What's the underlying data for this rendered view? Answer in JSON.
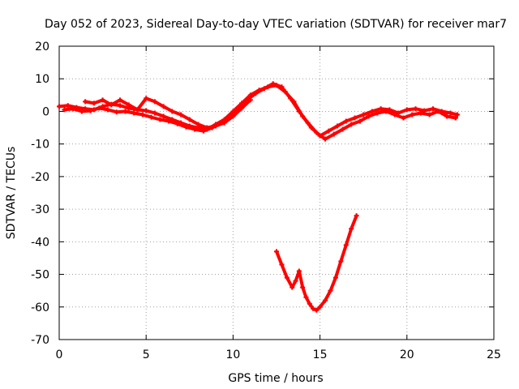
{
  "chart_data": {
    "type": "scatter",
    "title": "Day 052 of 2023, Sidereal Day-to-day VTEC variation (SDTVAR) for receiver mar7",
    "xlabel": "GPS time / hours",
    "ylabel": "SDTVAR / TECUs",
    "xlim": [
      0,
      25
    ],
    "ylim": [
      -70,
      20
    ],
    "grid": true,
    "xticks": [
      0,
      5,
      10,
      15,
      20,
      25
    ],
    "yticks": [
      20,
      10,
      0,
      -10,
      -20,
      -30,
      -40,
      -50,
      -60,
      -70
    ],
    "color": "#ff0000",
    "series": [
      {
        "name": "track-1",
        "x": [
          0.0,
          0.5,
          1.0,
          1.5,
          2.0,
          2.5,
          3.0,
          3.5,
          4.0,
          4.5,
          5.0,
          5.5,
          6.0,
          6.5,
          7.0,
          7.5,
          8.0,
          8.5,
          9.0,
          9.5,
          10.0,
          10.5,
          11.0,
          11.5,
          12.0,
          12.5,
          13.0,
          13.5,
          14.0,
          14.5,
          15.0,
          15.5,
          16.0,
          16.5,
          17.0,
          17.5,
          18.0,
          18.5,
          19.0,
          19.5,
          20.0,
          20.5,
          21.0,
          21.5,
          22.0,
          22.5,
          22.9
        ],
        "y": [
          1.5,
          1.8,
          1.2,
          0.8,
          0.5,
          1.5,
          2.2,
          1.8,
          1.0,
          0.5,
          0.2,
          -0.5,
          -1.5,
          -2.5,
          -3.5,
          -4.5,
          -5.0,
          -5.5,
          -4.0,
          -2.5,
          0.0,
          2.5,
          5.0,
          6.5,
          7.5,
          8.0,
          6.0,
          3.0,
          -1.5,
          -5.0,
          -7.5,
          -6.0,
          -4.5,
          -3.0,
          -2.0,
          -1.0,
          0.0,
          0.8,
          0.5,
          -0.5,
          0.5,
          0.8,
          0.2,
          0.8,
          0.0,
          -0.5,
          -1.0
        ]
      },
      {
        "name": "track-2",
        "x": [
          0.3,
          0.8,
          1.3,
          1.8,
          2.3,
          2.8,
          3.3,
          3.8,
          4.3,
          4.8,
          5.3,
          5.8,
          6.3,
          6.8,
          7.3,
          7.8,
          8.3,
          8.8,
          9.3,
          9.8,
          10.3,
          10.8,
          11.3,
          11.8,
          12.3,
          12.8,
          13.3,
          13.8,
          14.3,
          14.8,
          15.3,
          15.8,
          16.3,
          16.8,
          17.3,
          17.8,
          18.3,
          18.8,
          19.3,
          19.8,
          20.3,
          20.8,
          21.3,
          21.8,
          22.3,
          22.8
        ],
        "y": [
          0.5,
          0.8,
          0.0,
          0.2,
          1.0,
          0.5,
          -0.2,
          0.0,
          -0.5,
          -1.0,
          -1.8,
          -2.5,
          -3.0,
          -3.8,
          -4.8,
          -5.5,
          -6.0,
          -5.0,
          -3.5,
          -1.5,
          1.0,
          3.5,
          5.5,
          7.0,
          8.5,
          7.5,
          4.0,
          0.0,
          -3.5,
          -6.5,
          -8.5,
          -7.0,
          -5.5,
          -4.0,
          -3.0,
          -1.5,
          -0.5,
          0.0,
          -1.0,
          -2.0,
          -1.0,
          -0.5,
          -1.0,
          0.0,
          -1.5,
          -2.0
        ]
      },
      {
        "name": "track-3",
        "x": [
          1.5,
          2.0,
          2.5,
          3.0,
          3.5,
          4.0,
          4.5,
          5.0,
          5.5,
          6.0,
          6.5,
          7.0,
          7.5,
          8.0,
          8.5,
          9.0,
          9.5,
          10.0,
          10.5,
          11.0
        ],
        "y": [
          3.0,
          2.5,
          3.5,
          2.0,
          3.5,
          2.0,
          0.5,
          4.0,
          3.0,
          1.5,
          0.0,
          -1.0,
          -2.5,
          -4.0,
          -5.0,
          -4.5,
          -3.5,
          -1.5,
          1.0,
          3.5
        ]
      },
      {
        "name": "track-4",
        "x": [
          12.5,
          12.8,
          13.1,
          13.4,
          13.6,
          13.8,
          14.0,
          14.2,
          14.4,
          14.6,
          14.8,
          15.0,
          15.3,
          15.6,
          15.9,
          16.2,
          16.5,
          16.8,
          17.1
        ],
        "y": [
          -43,
          -47,
          -51,
          -54,
          -52,
          -49,
          -54,
          -57,
          -59,
          -60.5,
          -61,
          -60,
          -58,
          -55,
          -51,
          -46,
          -41,
          -36,
          -32
        ]
      }
    ]
  }
}
